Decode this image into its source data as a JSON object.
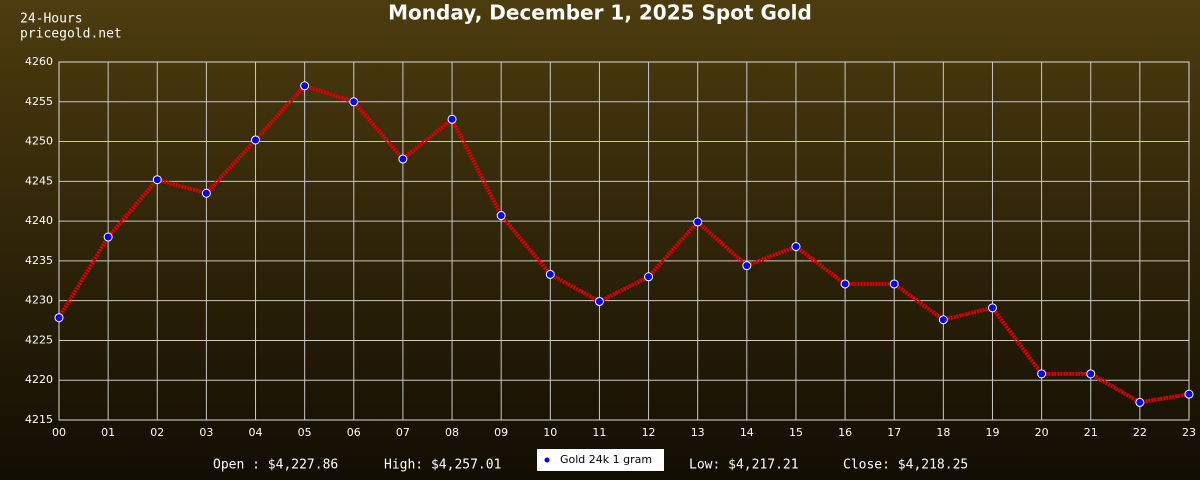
{
  "chart_data": {
    "type": "line",
    "title": "Monday, December 1, 2025 Spot Gold",
    "subtitle": [
      "24-Hours",
      "pricegold.net"
    ],
    "categories": [
      "00",
      "01",
      "02",
      "03",
      "04",
      "05",
      "06",
      "07",
      "08",
      "09",
      "10",
      "11",
      "12",
      "13",
      "14",
      "15",
      "16",
      "17",
      "18",
      "19",
      "20",
      "21",
      "22",
      "23"
    ],
    "series": [
      {
        "name": "Gold 24k 1 gram",
        "color": "#e00000",
        "marker_color": "#0000ff",
        "values": [
          4227.86,
          4238,
          4245.2,
          4243.5,
          4250.2,
          4257.01,
          4255,
          4247.8,
          4252.8,
          4240.7,
          4233.3,
          4229.9,
          4233,
          4239.9,
          4234.4,
          4236.8,
          4232.1,
          4232.1,
          4227.6,
          4229.1,
          4220.8,
          4220.8,
          4217.21,
          4218.25
        ]
      }
    ],
    "ylim": [
      4215,
      4260
    ],
    "yticks": [
      4215,
      4220,
      4225,
      4230,
      4235,
      4240,
      4245,
      4250,
      4255,
      4260
    ],
    "grid": true,
    "legend": "bottom",
    "annotations": [
      "Open : $4,227.86",
      "High: $4,257.01",
      "Low: $4,217.21",
      "Close: $4,218.25"
    ]
  }
}
